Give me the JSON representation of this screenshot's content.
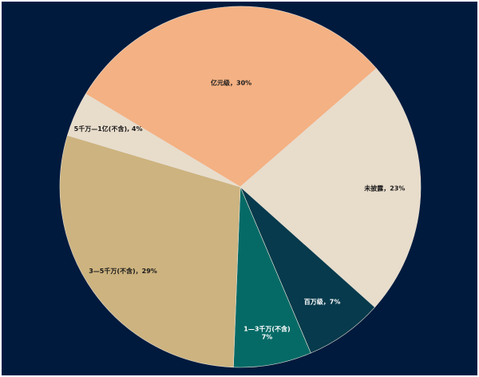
{
  "chart_data": {
    "type": "pie",
    "title": "",
    "slices": [
      {
        "label": "亿元级，30%",
        "value": 30,
        "color": "#f4b183"
      },
      {
        "label": "未披露，23%",
        "value": 23,
        "color": "#e8dccb"
      },
      {
        "label": "百万级，7%",
        "value": 7,
        "color": "#063a4c"
      },
      {
        "label": "1—3千万(不含) 7%",
        "label_lines": [
          "1—3千万(不含)",
          "7%"
        ],
        "value": 7,
        "color": "#056a66"
      },
      {
        "label": "3—5千万(不含)，29%",
        "value": 29,
        "color": "#cdb37f"
      },
      {
        "label": "5千万—1亿(不含), 4%",
        "value": 4,
        "color": "#e8dccb"
      }
    ]
  },
  "colors": {
    "background": "#001a3d",
    "slice_border": "#e8e2d6"
  }
}
